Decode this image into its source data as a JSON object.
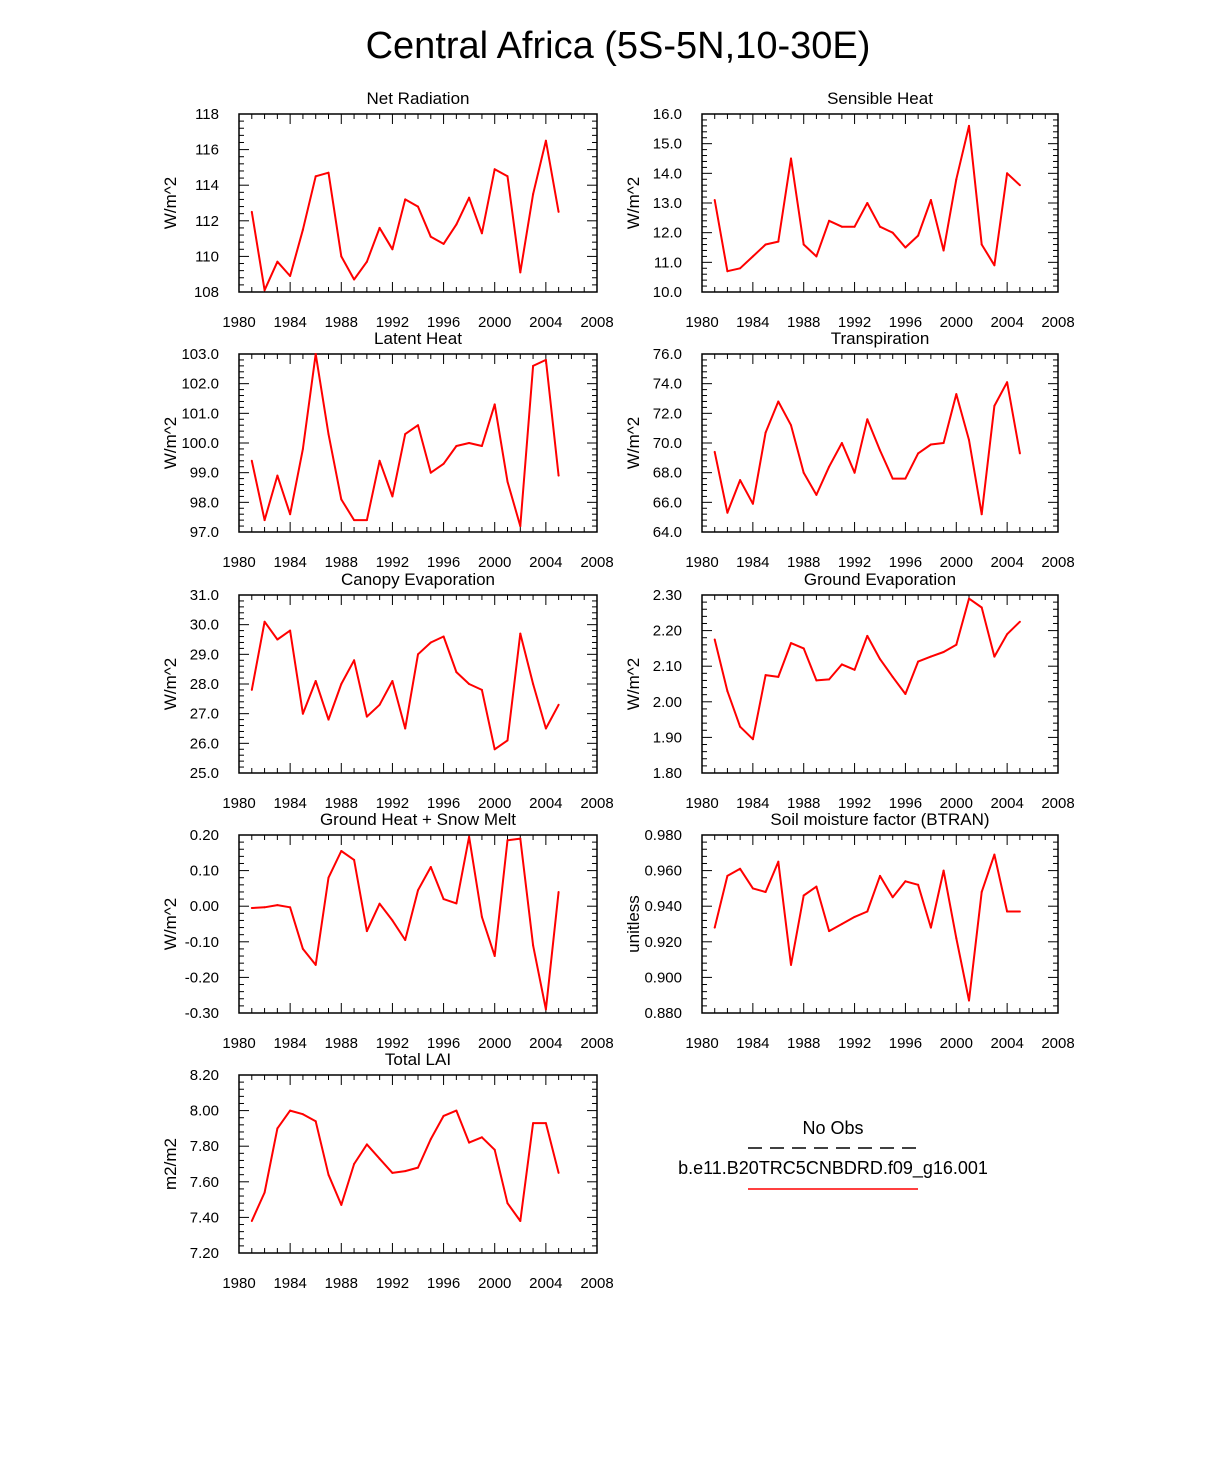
{
  "title": "Central Africa (5S-5N,10-30E)",
  "colors": {
    "series": "#ff0000",
    "axis": "#000000",
    "obs": "#000000"
  },
  "legend": {
    "obs_label": "No Obs",
    "model_label": "b.e11.B20TRC5CNBDRD.f09_g16.001"
  },
  "chart_data": [
    {
      "type": "line",
      "title": "Net Radiation",
      "ylabel": "W/m^2",
      "xlim": [
        1980,
        2008
      ],
      "ylim": [
        108,
        118
      ],
      "xticks": [
        "1980",
        "1984",
        "1988",
        "1992",
        "1996",
        "2000",
        "2004",
        "2008"
      ],
      "yticks": [
        "108",
        "110",
        "112",
        "114",
        "116",
        "118"
      ],
      "x": [
        1981,
        1982,
        1983,
        1984,
        1985,
        1986,
        1987,
        1988,
        1989,
        1990,
        1991,
        1992,
        1993,
        1994,
        1995,
        1996,
        1997,
        1998,
        1999,
        2000,
        2001,
        2002,
        2003,
        2004,
        2005
      ],
      "values": [
        112.5,
        108.1,
        109.7,
        108.9,
        111.5,
        114.5,
        114.7,
        110.0,
        108.7,
        109.7,
        111.6,
        110.4,
        113.2,
        112.8,
        111.1,
        110.7,
        111.8,
        113.3,
        111.3,
        114.9,
        114.5,
        109.1,
        113.5,
        116.5,
        112.5
      ]
    },
    {
      "type": "line",
      "title": "Sensible Heat",
      "ylabel": "W/m^2",
      "xlim": [
        1980,
        2008
      ],
      "ylim": [
        10,
        16
      ],
      "xticks": [
        "1980",
        "1984",
        "1988",
        "1992",
        "1996",
        "2000",
        "2004",
        "2008"
      ],
      "yticks": [
        "10.0",
        "11.0",
        "12.0",
        "13.0",
        "14.0",
        "15.0",
        "16.0"
      ],
      "x": [
        1981,
        1982,
        1983,
        1984,
        1985,
        1986,
        1987,
        1988,
        1989,
        1990,
        1991,
        1992,
        1993,
        1994,
        1995,
        1996,
        1997,
        1998,
        1999,
        2000,
        2001,
        2002,
        2003,
        2004,
        2005
      ],
      "values": [
        13.1,
        10.7,
        10.8,
        11.2,
        11.6,
        11.7,
        14.5,
        11.6,
        11.2,
        12.4,
        12.2,
        12.2,
        13.0,
        12.2,
        12.0,
        11.5,
        11.9,
        13.1,
        11.4,
        13.8,
        15.6,
        11.6,
        10.9,
        14.0,
        13.6
      ]
    },
    {
      "type": "line",
      "title": "Latent Heat",
      "ylabel": "W/m^2",
      "xlim": [
        1980,
        2008
      ],
      "ylim": [
        97,
        103
      ],
      "xticks": [
        "1980",
        "1984",
        "1988",
        "1992",
        "1996",
        "2000",
        "2004",
        "2008"
      ],
      "yticks": [
        "97.0",
        "98.0",
        "99.0",
        "100.0",
        "101.0",
        "102.0",
        "103.0"
      ],
      "x": [
        1981,
        1982,
        1983,
        1984,
        1985,
        1986,
        1987,
        1988,
        1989,
        1990,
        1991,
        1992,
        1993,
        1994,
        1995,
        1996,
        1997,
        1998,
        1999,
        2000,
        2001,
        2002,
        2003,
        2004,
        2005
      ],
      "values": [
        99.4,
        97.4,
        98.9,
        97.6,
        99.8,
        103.0,
        100.3,
        98.1,
        97.4,
        97.4,
        99.4,
        98.2,
        100.3,
        100.6,
        99.0,
        99.3,
        99.9,
        100.0,
        99.9,
        101.3,
        98.7,
        97.2,
        102.6,
        102.8,
        98.9
      ]
    },
    {
      "type": "line",
      "title": "Transpiration",
      "ylabel": "W/m^2",
      "xlim": [
        1980,
        2008
      ],
      "ylim": [
        64,
        76
      ],
      "xticks": [
        "1980",
        "1984",
        "1988",
        "1992",
        "1996",
        "2000",
        "2004",
        "2008"
      ],
      "yticks": [
        "64.0",
        "66.0",
        "68.0",
        "70.0",
        "72.0",
        "74.0",
        "76.0"
      ],
      "x": [
        1981,
        1982,
        1983,
        1984,
        1985,
        1986,
        1987,
        1988,
        1989,
        1990,
        1991,
        1992,
        1993,
        1994,
        1995,
        1996,
        1997,
        1998,
        1999,
        2000,
        2001,
        2002,
        2003,
        2004,
        2005
      ],
      "values": [
        69.4,
        65.3,
        67.5,
        65.9,
        70.7,
        72.8,
        71.2,
        68.0,
        66.5,
        68.4,
        70.0,
        68.0,
        71.6,
        69.5,
        67.6,
        67.6,
        69.3,
        69.9,
        70.0,
        73.3,
        70.2,
        65.2,
        72.5,
        74.1,
        69.3
      ]
    },
    {
      "type": "line",
      "title": "Canopy Evaporation",
      "ylabel": "W/m^2",
      "xlim": [
        1980,
        2008
      ],
      "ylim": [
        25,
        31
      ],
      "xticks": [
        "1980",
        "1984",
        "1988",
        "1992",
        "1996",
        "2000",
        "2004",
        "2008"
      ],
      "yticks": [
        "25.0",
        "26.0",
        "27.0",
        "28.0",
        "29.0",
        "30.0",
        "31.0"
      ],
      "x": [
        1981,
        1982,
        1983,
        1984,
        1985,
        1986,
        1987,
        1988,
        1989,
        1990,
        1991,
        1992,
        1993,
        1994,
        1995,
        1996,
        1997,
        1998,
        1999,
        2000,
        2001,
        2002,
        2003,
        2004,
        2005
      ],
      "values": [
        27.8,
        30.1,
        29.5,
        29.8,
        27.0,
        28.1,
        26.8,
        28.0,
        28.8,
        26.9,
        27.3,
        28.1,
        26.5,
        29.0,
        29.4,
        29.6,
        28.4,
        28.0,
        27.8,
        25.8,
        26.1,
        29.7,
        28.0,
        26.5,
        27.3
      ]
    },
    {
      "type": "line",
      "title": "Ground Evaporation",
      "ylabel": "W/m^2",
      "xlim": [
        1980,
        2008
      ],
      "ylim": [
        1.8,
        2.3
      ],
      "xticks": [
        "1980",
        "1984",
        "1988",
        "1992",
        "1996",
        "2000",
        "2004",
        "2008"
      ],
      "yticks": [
        "1.80",
        "1.90",
        "2.00",
        "2.10",
        "2.20",
        "2.30"
      ],
      "x": [
        1981,
        1982,
        1983,
        1984,
        1985,
        1986,
        1987,
        1988,
        1989,
        1990,
        1991,
        1992,
        1993,
        1994,
        1995,
        1996,
        1997,
        1998,
        1999,
        2000,
        2001,
        2002,
        2003,
        2004,
        2005
      ],
      "values": [
        2.175,
        2.03,
        1.93,
        1.895,
        2.075,
        2.07,
        2.165,
        2.15,
        2.06,
        2.063,
        2.105,
        2.09,
        2.185,
        2.12,
        2.07,
        2.022,
        2.113,
        2.127,
        2.14,
        2.16,
        2.29,
        2.265,
        2.127,
        2.19,
        2.225
      ]
    },
    {
      "type": "line",
      "title": "Ground Heat + Snow Melt",
      "ylabel": "W/m^2",
      "xlim": [
        1980,
        2008
      ],
      "ylim": [
        -0.3,
        0.2
      ],
      "xticks": [
        "1980",
        "1984",
        "1988",
        "1992",
        "1996",
        "2000",
        "2004",
        "2008"
      ],
      "yticks": [
        "-0.30",
        "-0.20",
        "-0.10",
        "0.00",
        "0.10",
        "0.20"
      ],
      "x": [
        1981,
        1982,
        1983,
        1984,
        1985,
        1986,
        1987,
        1988,
        1989,
        1990,
        1991,
        1992,
        1993,
        1994,
        1995,
        1996,
        1997,
        1998,
        1999,
        2000,
        2001,
        2002,
        2003,
        2004,
        2005
      ],
      "values": [
        -0.005,
        -0.003,
        0.003,
        -0.003,
        -0.12,
        -0.165,
        0.08,
        0.155,
        0.13,
        -0.07,
        0.007,
        -0.04,
        -0.095,
        0.045,
        0.11,
        0.02,
        0.008,
        0.195,
        -0.03,
        -0.14,
        0.185,
        0.19,
        -0.11,
        -0.29,
        0.04
      ]
    },
    {
      "type": "line",
      "title": "Soil moisture factor (BTRAN)",
      "ylabel": "unitless",
      "xlim": [
        1980,
        2008
      ],
      "ylim": [
        0.88,
        0.98
      ],
      "xticks": [
        "1980",
        "1984",
        "1988",
        "1992",
        "1996",
        "2000",
        "2004",
        "2008"
      ],
      "yticks": [
        "0.880",
        "0.900",
        "0.920",
        "0.940",
        "0.960",
        "0.980"
      ],
      "x": [
        1981,
        1982,
        1983,
        1984,
        1985,
        1986,
        1987,
        1988,
        1989,
        1990,
        1991,
        1992,
        1993,
        1994,
        1995,
        1996,
        1997,
        1998,
        1999,
        2000,
        2001,
        2002,
        2003,
        2004,
        2005
      ],
      "values": [
        0.928,
        0.957,
        0.961,
        0.95,
        0.948,
        0.965,
        0.907,
        0.946,
        0.951,
        0.926,
        0.93,
        0.934,
        0.937,
        0.957,
        0.945,
        0.954,
        0.952,
        0.928,
        0.96,
        0.922,
        0.887,
        0.948,
        0.969,
        0.937,
        0.937
      ]
    },
    {
      "type": "line",
      "title": "Total LAI",
      "ylabel": "m2/m2",
      "xlim": [
        1980,
        2008
      ],
      "ylim": [
        7.2,
        8.2
      ],
      "xticks": [
        "1980",
        "1984",
        "1988",
        "1992",
        "1996",
        "2000",
        "2004",
        "2008"
      ],
      "yticks": [
        "7.20",
        "7.40",
        "7.60",
        "7.80",
        "8.00",
        "8.20"
      ],
      "x": [
        1981,
        1982,
        1983,
        1984,
        1985,
        1986,
        1987,
        1988,
        1989,
        1990,
        1991,
        1992,
        1993,
        1994,
        1995,
        1996,
        1997,
        1998,
        1999,
        2000,
        2001,
        2002,
        2003,
        2004,
        2005
      ],
      "values": [
        7.38,
        7.54,
        7.9,
        8.0,
        7.98,
        7.94,
        7.64,
        7.47,
        7.7,
        7.81,
        7.73,
        7.65,
        7.66,
        7.68,
        7.84,
        7.97,
        8.0,
        7.82,
        7.85,
        7.78,
        7.48,
        7.38,
        7.93,
        7.93,
        7.65
      ]
    }
  ]
}
